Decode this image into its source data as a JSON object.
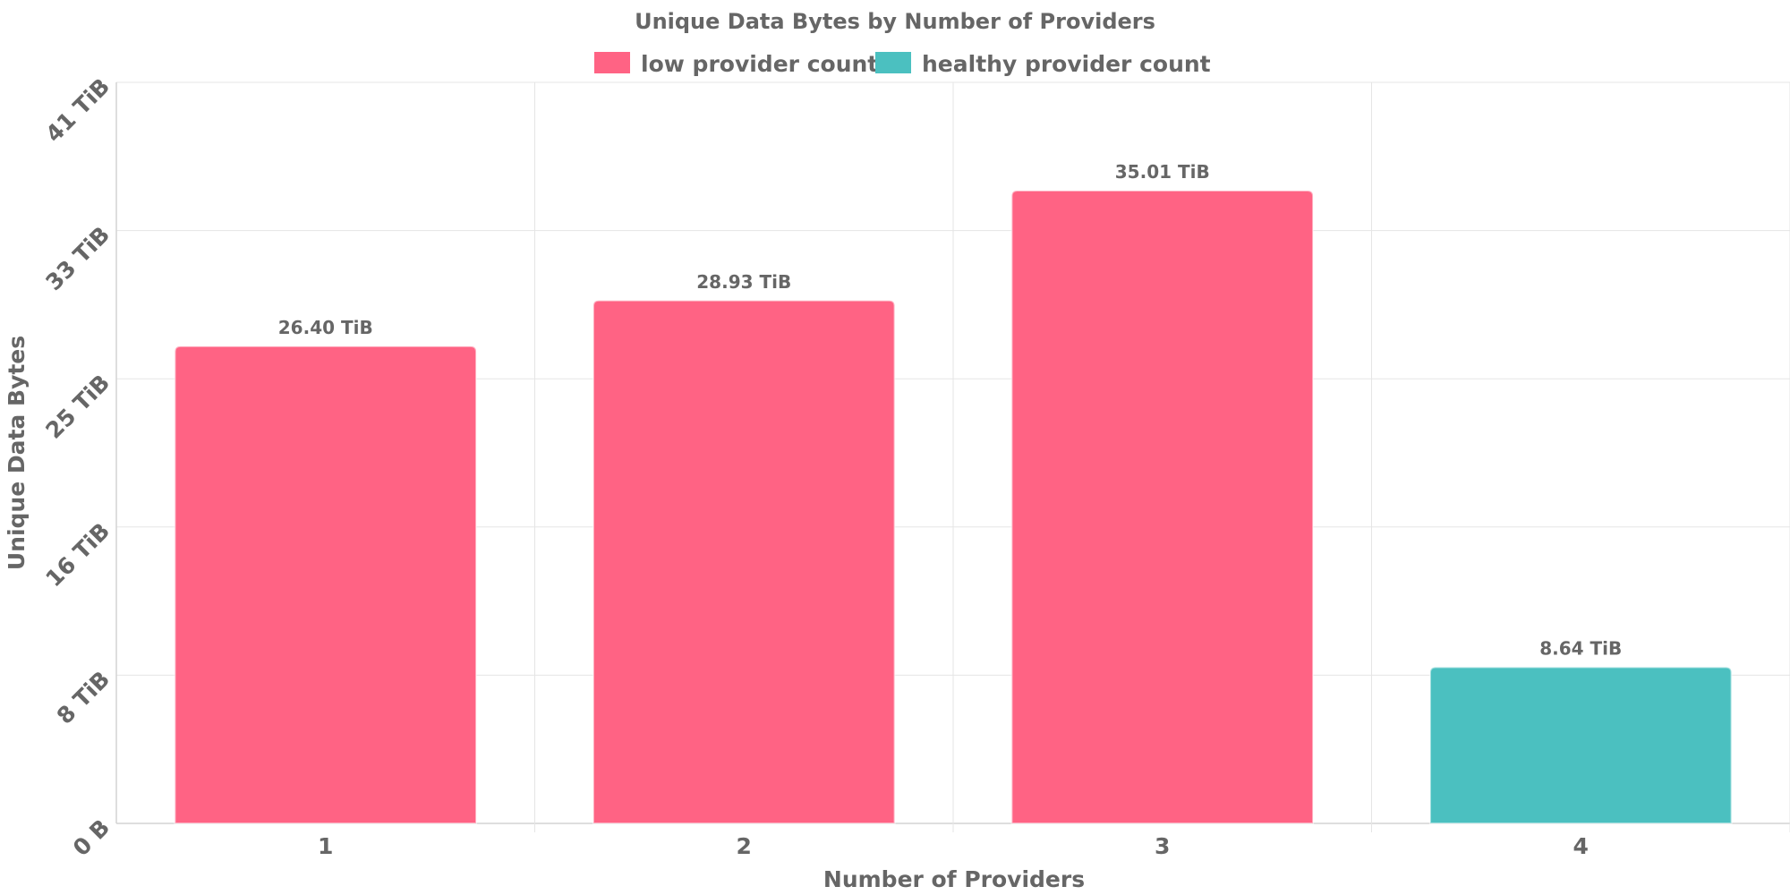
{
  "chart_data": {
    "type": "bar",
    "title": "Unique Data Bytes by Number of Providers",
    "xlabel": "Number of Providers",
    "ylabel": "Unique Data Bytes",
    "categories": [
      "1",
      "2",
      "3",
      "4"
    ],
    "values": [
      26.4,
      28.93,
      35.01,
      8.64
    ],
    "unit": "TiB",
    "value_labels": [
      "26.40 TiB",
      "28.93 TiB",
      "35.01 TiB",
      "8.64 TiB"
    ],
    "bar_series": [
      "low provider count",
      "low provider count",
      "low provider count",
      "healthy provider count"
    ],
    "ylim": [
      0,
      41
    ],
    "yticks": [
      0,
      8.2,
      16.4,
      24.6,
      32.8,
      41
    ],
    "ytick_labels": [
      "0 B",
      "8 TiB",
      "16 TiB",
      "25 TiB",
      "33 TiB",
      "41 TiB"
    ],
    "legend": {
      "position": "top-center",
      "items": [
        {
          "label": "low provider count",
          "color": "#ff6384"
        },
        {
          "label": "healthy provider count",
          "color": "#4bc0c0"
        }
      ]
    },
    "grid": true
  }
}
